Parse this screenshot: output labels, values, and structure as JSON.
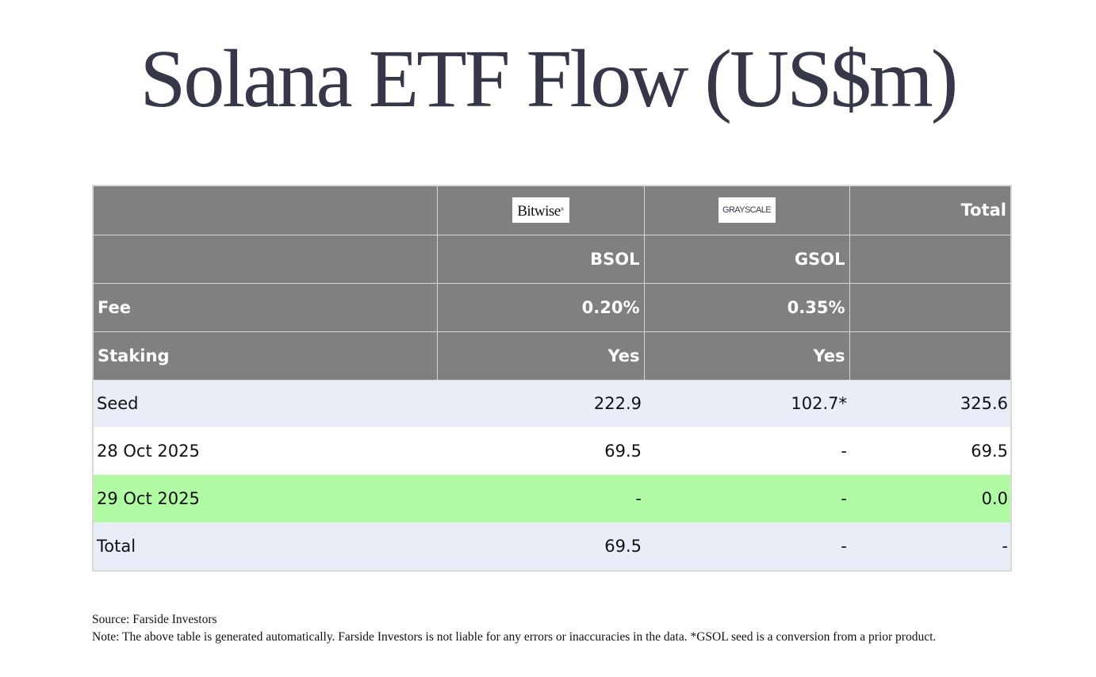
{
  "title": "Solana ETF Flow (US$m)",
  "colors": {
    "title": "#363849",
    "header_bg": "#808080",
    "header_text": "#ffffff",
    "row_blue": "#e9edf8",
    "row_white": "#ffffff",
    "row_green": "#b0fba4",
    "table_border": "#dcdad0"
  },
  "table": {
    "header": {
      "logos": [
        {
          "issuer": "Bitwise",
          "label": "Bitwise",
          "mark": "®"
        },
        {
          "issuer": "Grayscale",
          "label": "GRAYSCALE",
          "mark": "™"
        }
      ],
      "total_label": "Total",
      "tickers": [
        "BSOL",
        "GSOL"
      ],
      "fee_label": "Fee",
      "fees": [
        "0.20%",
        "0.35%"
      ],
      "staking_label": "Staking",
      "staking": [
        "Yes",
        "Yes"
      ]
    },
    "columns": [
      "",
      "BSOL",
      "GSOL",
      "Total"
    ],
    "rows": [
      {
        "label": "Seed",
        "values": [
          "222.9",
          "102.7*",
          "325.6"
        ],
        "style": "blue"
      },
      {
        "label": "28 Oct 2025",
        "values": [
          "69.5",
          "-",
          "69.5"
        ],
        "style": "white"
      },
      {
        "label": "29 Oct 2025",
        "values": [
          "-",
          "-",
          "0.0"
        ],
        "style": "green"
      },
      {
        "label": "Total",
        "values": [
          "69.5",
          "-",
          "-"
        ],
        "style": "blue"
      }
    ]
  },
  "footer": {
    "source": "Source: Farside Investors",
    "note": "Note: The above table is generated automatically. Farside Investors is not liable for any errors or inaccuracies in the data. *GSOL seed is a conversion from a prior product."
  }
}
